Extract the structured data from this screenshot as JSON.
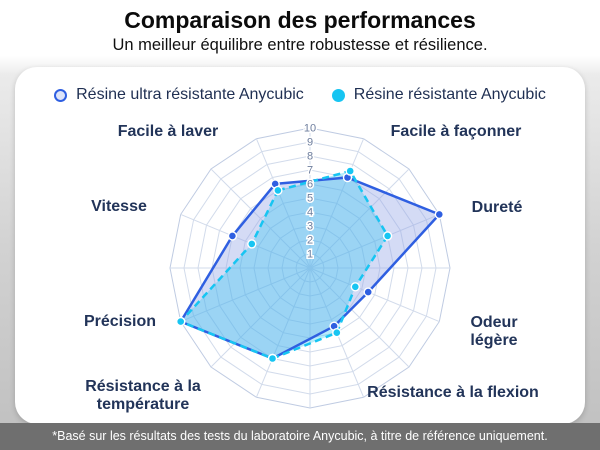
{
  "header": {
    "title": "Comparaison des performances",
    "subtitle": "Un meilleur équilibre entre robustesse et résilience."
  },
  "legend": [
    {
      "label": "Résine ultra résistante Anycubic",
      "color": "#2f5fe1",
      "fill": "#dde4fa"
    },
    {
      "label": "Résine résistante Anycubic",
      "color": "#17c5f2",
      "fill": "#17c5f2"
    }
  ],
  "chart_data": {
    "type": "radar",
    "title": "Comparaison des performances",
    "subtitle": "Un meilleur équilibre entre robustesse et résilience.",
    "axes": [
      "Facile à laver",
      "Facile à façonner",
      "Dureté",
      "Odeur\nlégère",
      "Résistance à la flexion",
      "Résistance à la\ntempérature",
      "Précision",
      "Vitesse"
    ],
    "scale": {
      "min": 1,
      "max": 10,
      "ticks": [
        1,
        2,
        3,
        4,
        5,
        6,
        7,
        8,
        9,
        10
      ]
    },
    "grid": {
      "rings": 10,
      "spokes": 16,
      "color": "#d2dbeb"
    },
    "series": [
      {
        "name": "Résine ultra résistante Anycubic",
        "values": [
          6.5,
          7,
          10,
          4.5,
          4.5,
          7,
          10,
          6
        ],
        "stroke": "#2f5fe1",
        "fill": "rgba(148,165,230,0.40)",
        "dash": "solid"
      },
      {
        "name": "Résine résistante Anycubic",
        "values": [
          6,
          7.5,
          6,
          3.5,
          5,
          7,
          10,
          4.5
        ],
        "stroke": "#17c5f2",
        "fill": "rgba(23,197,242,0.30)",
        "dash": "dashed"
      }
    ]
  },
  "footnote": "*Basé sur les résultats des tests du laboratoire Anycubic, à titre de référence uniquement."
}
